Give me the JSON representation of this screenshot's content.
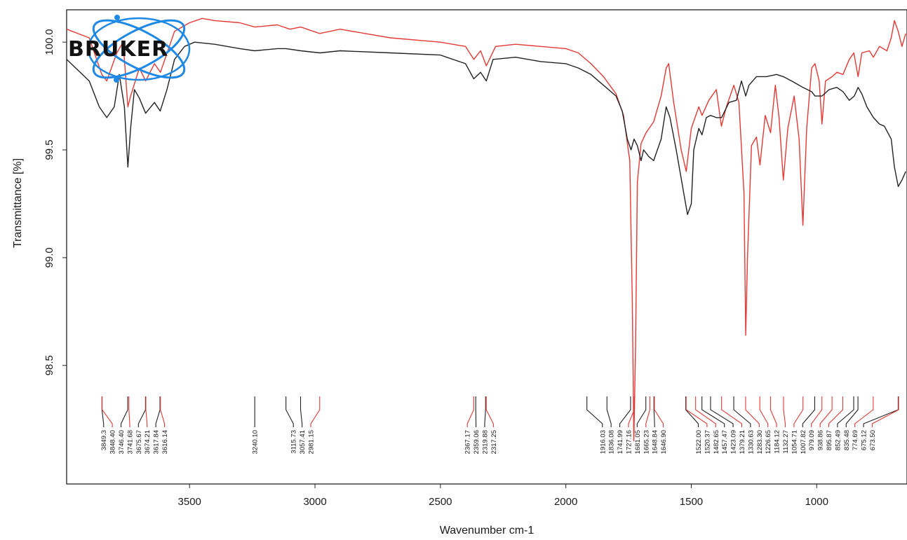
{
  "chart_data": {
    "type": "line",
    "xlabel": "Wavenumber cm-1",
    "ylabel": "Transmittance [%]",
    "xlim": [
      3990,
      640
    ],
    "ylim": [
      97.95,
      100.15
    ],
    "x_ticks": [
      {
        "value": 3500,
        "label": "3500"
      },
      {
        "value": 3000,
        "label": "3000"
      },
      {
        "value": 2500,
        "label": "2500"
      },
      {
        "value": 2000,
        "label": "2000"
      },
      {
        "value": 1500,
        "label": "1500"
      },
      {
        "value": 1000,
        "label": "1000"
      }
    ],
    "y_ticks": [
      {
        "value": 100.0,
        "label": "100.0"
      },
      {
        "value": 99.5,
        "label": "99.5"
      },
      {
        "value": 99.0,
        "label": "99.0"
      },
      {
        "value": 98.5,
        "label": "98.5"
      }
    ],
    "logo": {
      "text": "BRUKER",
      "color": "#1e88e5"
    },
    "series": [
      {
        "color": "#e53935",
        "points": [
          [
            3990,
            100.06
          ],
          [
            3900,
            100.02
          ],
          [
            3850,
            99.85
          ],
          [
            3830,
            99.82
          ],
          [
            3790,
            99.95
          ],
          [
            3765,
            100.0
          ],
          [
            3746,
            99.7
          ],
          [
            3735,
            99.75
          ],
          [
            3700,
            99.88
          ],
          [
            3675,
            99.82
          ],
          [
            3640,
            99.9
          ],
          [
            3616,
            99.86
          ],
          [
            3560,
            100.05
          ],
          [
            3500,
            100.09
          ],
          [
            3450,
            100.11
          ],
          [
            3400,
            100.1
          ],
          [
            3300,
            100.09
          ],
          [
            3240,
            100.07
          ],
          [
            3150,
            100.08
          ],
          [
            3100,
            100.06
          ],
          [
            3057,
            100.07
          ],
          [
            2981,
            100.04
          ],
          [
            2900,
            100.06
          ],
          [
            2700,
            100.02
          ],
          [
            2500,
            100.0
          ],
          [
            2400,
            99.98
          ],
          [
            2367,
            99.92
          ],
          [
            2340,
            99.96
          ],
          [
            2317,
            99.89
          ],
          [
            2280,
            99.98
          ],
          [
            2200,
            99.99
          ],
          [
            2100,
            99.98
          ],
          [
            2000,
            99.97
          ],
          [
            1950,
            99.95
          ],
          [
            1900,
            99.9
          ],
          [
            1850,
            99.84
          ],
          [
            1800,
            99.76
          ],
          [
            1770,
            99.66
          ],
          [
            1745,
            99.45
          ],
          [
            1735,
            98.8
          ],
          [
            1729,
            98.15
          ],
          [
            1722,
            98.6
          ],
          [
            1715,
            99.35
          ],
          [
            1700,
            99.53
          ],
          [
            1680,
            99.58
          ],
          [
            1650,
            99.63
          ],
          [
            1620,
            99.75
          ],
          [
            1600,
            99.88
          ],
          [
            1590,
            99.9
          ],
          [
            1570,
            99.72
          ],
          [
            1540,
            99.5
          ],
          [
            1520,
            99.4
          ],
          [
            1500,
            99.6
          ],
          [
            1470,
            99.7
          ],
          [
            1457,
            99.66
          ],
          [
            1430,
            99.73
          ],
          [
            1400,
            99.78
          ],
          [
            1380,
            99.61
          ],
          [
            1360,
            99.7
          ],
          [
            1330,
            99.8
          ],
          [
            1310,
            99.72
          ],
          [
            1290,
            99.3
          ],
          [
            1283,
            98.64
          ],
          [
            1276,
            99.0
          ],
          [
            1260,
            99.52
          ],
          [
            1240,
            99.56
          ],
          [
            1226,
            99.43
          ],
          [
            1205,
            99.66
          ],
          [
            1184,
            99.58
          ],
          [
            1165,
            99.8
          ],
          [
            1150,
            99.65
          ],
          [
            1133,
            99.36
          ],
          [
            1115,
            99.6
          ],
          [
            1090,
            99.75
          ],
          [
            1070,
            99.55
          ],
          [
            1055,
            99.15
          ],
          [
            1040,
            99.6
          ],
          [
            1020,
            99.88
          ],
          [
            1007,
            99.9
          ],
          [
            990,
            99.82
          ],
          [
            979,
            99.62
          ],
          [
            965,
            99.82
          ],
          [
            938,
            99.84
          ],
          [
            920,
            99.86
          ],
          [
            895,
            99.85
          ],
          [
            870,
            99.92
          ],
          [
            852,
            99.95
          ],
          [
            835,
            99.84
          ],
          [
            820,
            99.95
          ],
          [
            790,
            99.96
          ],
          [
            774,
            99.93
          ],
          [
            750,
            99.98
          ],
          [
            720,
            99.96
          ],
          [
            703,
            100.02
          ],
          [
            690,
            100.1
          ],
          [
            675,
            100.05
          ],
          [
            660,
            99.98
          ],
          [
            645,
            100.04
          ]
        ]
      },
      {
        "color": "#222222",
        "points": [
          [
            3990,
            99.92
          ],
          [
            3900,
            99.82
          ],
          [
            3860,
            99.7
          ],
          [
            3830,
            99.65
          ],
          [
            3800,
            99.7
          ],
          [
            3780,
            99.85
          ],
          [
            3760,
            99.7
          ],
          [
            3746,
            99.42
          ],
          [
            3735,
            99.6
          ],
          [
            3720,
            99.78
          ],
          [
            3700,
            99.74
          ],
          [
            3675,
            99.67
          ],
          [
            3640,
            99.72
          ],
          [
            3617,
            99.68
          ],
          [
            3590,
            99.78
          ],
          [
            3560,
            99.92
          ],
          [
            3520,
            99.98
          ],
          [
            3480,
            100.0
          ],
          [
            3400,
            99.99
          ],
          [
            3300,
            99.97
          ],
          [
            3240,
            99.96
          ],
          [
            3150,
            99.97
          ],
          [
            3116,
            99.97
          ],
          [
            3057,
            99.96
          ],
          [
            2980,
            99.95
          ],
          [
            2900,
            99.96
          ],
          [
            2700,
            99.95
          ],
          [
            2500,
            99.94
          ],
          [
            2400,
            99.9
          ],
          [
            2367,
            99.83
          ],
          [
            2340,
            99.86
          ],
          [
            2317,
            99.82
          ],
          [
            2290,
            99.92
          ],
          [
            2200,
            99.93
          ],
          [
            2100,
            99.91
          ],
          [
            2000,
            99.9
          ],
          [
            1950,
            99.88
          ],
          [
            1900,
            99.85
          ],
          [
            1850,
            99.8
          ],
          [
            1800,
            99.75
          ],
          [
            1775,
            99.68
          ],
          [
            1755,
            99.55
          ],
          [
            1740,
            99.5
          ],
          [
            1728,
            99.55
          ],
          [
            1715,
            99.52
          ],
          [
            1700,
            99.45
          ],
          [
            1690,
            99.5
          ],
          [
            1670,
            99.47
          ],
          [
            1650,
            99.45
          ],
          [
            1620,
            99.55
          ],
          [
            1600,
            99.7
          ],
          [
            1585,
            99.65
          ],
          [
            1560,
            99.5
          ],
          [
            1530,
            99.3
          ],
          [
            1515,
            99.2
          ],
          [
            1500,
            99.25
          ],
          [
            1490,
            99.5
          ],
          [
            1470,
            99.6
          ],
          [
            1457,
            99.57
          ],
          [
            1440,
            99.65
          ],
          [
            1423,
            99.66
          ],
          [
            1400,
            99.65
          ],
          [
            1379,
            99.65
          ],
          [
            1350,
            99.72
          ],
          [
            1320,
            99.73
          ],
          [
            1300,
            99.82
          ],
          [
            1283,
            99.75
          ],
          [
            1270,
            99.8
          ],
          [
            1240,
            99.84
          ],
          [
            1200,
            99.84
          ],
          [
            1160,
            99.85
          ],
          [
            1133,
            99.84
          ],
          [
            1100,
            99.82
          ],
          [
            1055,
            99.79
          ],
          [
            1020,
            99.77
          ],
          [
            1007,
            99.75
          ],
          [
            979,
            99.75
          ],
          [
            950,
            99.78
          ],
          [
            920,
            99.79
          ],
          [
            895,
            99.77
          ],
          [
            870,
            99.73
          ],
          [
            850,
            99.75
          ],
          [
            835,
            99.79
          ],
          [
            820,
            99.76
          ],
          [
            800,
            99.7
          ],
          [
            774,
            99.65
          ],
          [
            750,
            99.62
          ],
          [
            730,
            99.61
          ],
          [
            703,
            99.55
          ],
          [
            690,
            99.42
          ],
          [
            675,
            99.33
          ],
          [
            660,
            99.36
          ],
          [
            645,
            99.4
          ]
        ]
      }
    ],
    "peak_labels": [
      {
        "x": 3849.3,
        "text": "3849.3",
        "color": "#222222"
      },
      {
        "x": 3848.4,
        "text": "3848.40",
        "color": "#e53935"
      },
      {
        "x": 3746.4,
        "text": "3746.40",
        "color": "#222222"
      },
      {
        "x": 3741.68,
        "text": "3741.68",
        "color": "#e53935"
      },
      {
        "x": 3675.67,
        "text": "3675.67",
        "color": "#222222"
      },
      {
        "x": 3674.21,
        "text": "3674.21",
        "color": "#e53935"
      },
      {
        "x": 3617.84,
        "text": "3617.84",
        "color": "#222222"
      },
      {
        "x": 3616.14,
        "text": "3616.14",
        "color": "#e53935"
      },
      {
        "x": 3240.1,
        "text": "3240.10",
        "color": "#222222"
      },
      {
        "x": 3115.73,
        "text": "3115.73",
        "color": "#222222"
      },
      {
        "x": 3057.41,
        "text": "3057.41",
        "color": "#222222"
      },
      {
        "x": 2981.15,
        "text": "2981.15",
        "color": "#e53935"
      },
      {
        "x": 2367.17,
        "text": "2367.17",
        "color": "#e53935"
      },
      {
        "x": 2359.06,
        "text": "2359.06",
        "color": "#222222"
      },
      {
        "x": 2319.88,
        "text": "2319.88",
        "color": "#222222"
      },
      {
        "x": 2317.25,
        "text": "2317.25",
        "color": "#e53935"
      },
      {
        "x": 1916.03,
        "text": "1916.03",
        "color": "#222222"
      },
      {
        "x": 1836.08,
        "text": "1836.08",
        "color": "#222222"
      },
      {
        "x": 1741.99,
        "text": "1741.99",
        "color": "#222222"
      },
      {
        "x": 1727.16,
        "text": "1727.16",
        "color": "#e53935"
      },
      {
        "x": 1681.05,
        "text": "1681.05",
        "color": "#222222"
      },
      {
        "x": 1665.23,
        "text": "1665.23",
        "color": "#e53935"
      },
      {
        "x": 1648.84,
        "text": "1648.84",
        "color": "#222222"
      },
      {
        "x": 1646.9,
        "text": "1646.90",
        "color": "#e53935"
      },
      {
        "x": 1522.0,
        "text": "1522.00",
        "color": "#222222"
      },
      {
        "x": 1520.37,
        "text": "1520.37",
        "color": "#e53935"
      },
      {
        "x": 1482.65,
        "text": "1482.65",
        "color": "#e53935"
      },
      {
        "x": 1457.47,
        "text": "1457.47",
        "color": "#222222"
      },
      {
        "x": 1423.09,
        "text": "1423.09",
        "color": "#222222"
      },
      {
        "x": 1379.21,
        "text": "1379.21",
        "color": "#e53935"
      },
      {
        "x": 1330.63,
        "text": "1330.63",
        "color": "#222222"
      },
      {
        "x": 1283.3,
        "text": "1283.30",
        "color": "#e53935"
      },
      {
        "x": 1226.65,
        "text": "1226.65",
        "color": "#e53935"
      },
      {
        "x": 1184.12,
        "text": "1184.12",
        "color": "#e53935"
      },
      {
        "x": 1132.27,
        "text": "1132.27",
        "color": "#e53935"
      },
      {
        "x": 1054.71,
        "text": "1054.71",
        "color": "#e53935"
      },
      {
        "x": 1007.82,
        "text": "1007.82",
        "color": "#222222"
      },
      {
        "x": 979.09,
        "text": "979.09",
        "color": "#e53935"
      },
      {
        "x": 938.86,
        "text": "938.86",
        "color": "#e53935"
      },
      {
        "x": 895.87,
        "text": "895.87",
        "color": "#e53935"
      },
      {
        "x": 852.49,
        "text": "852.49",
        "color": "#222222"
      },
      {
        "x": 835.48,
        "text": "835.48",
        "color": "#222222"
      },
      {
        "x": 774.69,
        "text": "774.69",
        "color": "#e53935"
      },
      {
        "x": 673.5,
        "text": "673.50",
        "color": "#e53935"
      },
      {
        "x": 675.12,
        "text": "675.12",
        "color": "#222222"
      }
    ]
  }
}
